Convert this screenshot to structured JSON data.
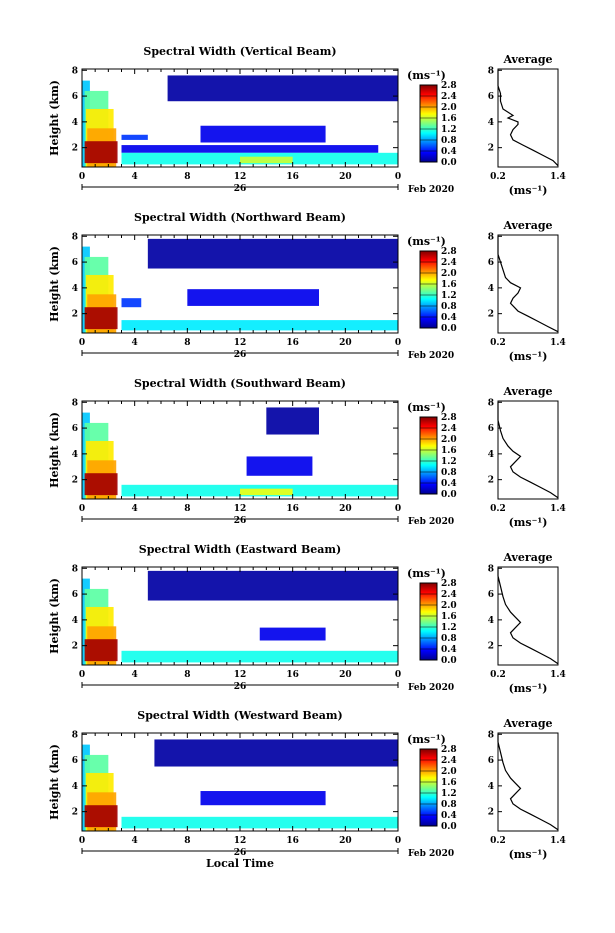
{
  "panels": [
    {
      "title": "Spectral Width (Vertical Beam)",
      "chart_data": {
        "type": "heatmap",
        "xlabel": "",
        "ylabel": "Height (km)",
        "xlim": [
          0,
          24
        ],
        "ylim": [
          0.5,
          8.1
        ],
        "x_ticks": [
          "0",
          "4",
          "8",
          "12",
          "16",
          "20",
          "0"
        ],
        "y_ticks": [
          "2",
          "4",
          "6",
          "8"
        ],
        "date_center": "26",
        "date_right": "Feb 2020",
        "colorbar": {
          "unit": "(ms⁻¹)",
          "range": [
            0,
            2.8
          ],
          "ticks": [
            "0.0",
            "0.4",
            "0.8",
            "1.2",
            "1.6",
            "2.0",
            "2.4",
            "2.8"
          ]
        },
        "regions": [
          {
            "x": [
              0,
              0.6
            ],
            "y": [
              0.5,
              7.2
            ],
            "value": 0.9
          },
          {
            "x": [
              0.2,
              2.0
            ],
            "y": [
              0.5,
              6.4
            ],
            "value": 1.3
          },
          {
            "x": [
              0.3,
              2.4
            ],
            "y": [
              0.5,
              5.0
            ],
            "value": 1.8
          },
          {
            "x": [
              0.4,
              2.6
            ],
            "y": [
              0.5,
              3.5
            ],
            "value": 2.0
          },
          {
            "x": [
              0.2,
              2.7
            ],
            "y": [
              0.8,
              2.5
            ],
            "value": 2.7
          },
          {
            "x": [
              3.0,
              5.0
            ],
            "y": [
              2.6,
              3.0
            ],
            "value": 0.5
          },
          {
            "x": [
              3.0,
              22.5
            ],
            "y": [
              1.6,
              2.2
            ],
            "value": 0.3
          },
          {
            "x": [
              9.0,
              18.5
            ],
            "y": [
              2.4,
              3.7
            ],
            "value": 0.3
          },
          {
            "x": [
              3.0,
              24.0
            ],
            "y": [
              0.7,
              1.6
            ],
            "value": 1.1
          },
          {
            "x": [
              12.0,
              16.0
            ],
            "y": [
              0.8,
              1.3
            ],
            "value": 1.6
          },
          {
            "x": [
              6.5,
              24.0
            ],
            "y": [
              5.6,
              7.6
            ],
            "value": 0.1
          }
        ]
      },
      "avg": {
        "title": "Average",
        "xlabel": "(ms⁻¹)",
        "x_ticks": [
          "0.2",
          "1.4"
        ],
        "y_ticks": [
          "2",
          "4",
          "6",
          "8"
        ],
        "xlim": [
          0.2,
          1.4
        ],
        "ylim": [
          0.5,
          8.1
        ],
        "points": [
          [
            1.4,
            0.6
          ],
          [
            1.3,
            1.0
          ],
          [
            1.1,
            1.4
          ],
          [
            0.9,
            1.8
          ],
          [
            0.7,
            2.2
          ],
          [
            0.5,
            2.6
          ],
          [
            0.45,
            3.0
          ],
          [
            0.5,
            3.4
          ],
          [
            0.6,
            3.8
          ],
          [
            0.6,
            4.0
          ],
          [
            0.4,
            4.3
          ],
          [
            0.5,
            4.5
          ],
          [
            0.3,
            5.0
          ],
          [
            0.25,
            5.6
          ],
          [
            0.25,
            6.2
          ],
          [
            0.2,
            6.8
          ],
          [
            0.2,
            7.4
          ],
          [
            0.2,
            8.0
          ]
        ]
      }
    },
    {
      "title": "Spectral Width (Northward Beam)",
      "chart_data": {
        "type": "heatmap",
        "xlabel": "",
        "ylabel": "Height (km)",
        "xlim": [
          0,
          24
        ],
        "ylim": [
          0.5,
          8.1
        ],
        "x_ticks": [
          "0",
          "4",
          "8",
          "12",
          "16",
          "20",
          "0"
        ],
        "y_ticks": [
          "2",
          "4",
          "6",
          "8"
        ],
        "date_center": "26",
        "date_right": "Feb 2020",
        "colorbar": {
          "unit": "(ms⁻¹)",
          "range": [
            0,
            2.8
          ],
          "ticks": [
            "0.0",
            "0.4",
            "0.8",
            "1.2",
            "1.6",
            "2.0",
            "2.4",
            "2.8"
          ]
        },
        "regions": [
          {
            "x": [
              0,
              0.6
            ],
            "y": [
              0.5,
              7.2
            ],
            "value": 0.9
          },
          {
            "x": [
              0.2,
              2.0
            ],
            "y": [
              0.5,
              6.4
            ],
            "value": 1.3
          },
          {
            "x": [
              0.3,
              2.4
            ],
            "y": [
              0.5,
              5.0
            ],
            "value": 1.8
          },
          {
            "x": [
              0.4,
              2.6
            ],
            "y": [
              0.5,
              3.5
            ],
            "value": 2.0
          },
          {
            "x": [
              0.2,
              2.7
            ],
            "y": [
              0.8,
              2.5
            ],
            "value": 2.7
          },
          {
            "x": [
              3.0,
              4.5
            ],
            "y": [
              2.5,
              3.2
            ],
            "value": 0.5
          },
          {
            "x": [
              8.0,
              18.0
            ],
            "y": [
              2.6,
              3.9
            ],
            "value": 0.3
          },
          {
            "x": [
              3.0,
              24.0
            ],
            "y": [
              0.7,
              1.5
            ],
            "value": 1.0
          },
          {
            "x": [
              5.0,
              24.0
            ],
            "y": [
              5.5,
              7.8
            ],
            "value": 0.1
          }
        ]
      },
      "avg": {
        "title": "Average",
        "xlabel": "(ms⁻¹)",
        "x_ticks": [
          "0.2",
          "1.4"
        ],
        "y_ticks": [
          "2",
          "4",
          "6",
          "8"
        ],
        "xlim": [
          0.2,
          1.4
        ],
        "ylim": [
          0.5,
          8.1
        ],
        "points": [
          [
            1.4,
            0.6
          ],
          [
            1.2,
            1.0
          ],
          [
            1.0,
            1.4
          ],
          [
            0.8,
            1.8
          ],
          [
            0.6,
            2.2
          ],
          [
            0.45,
            2.8
          ],
          [
            0.5,
            3.2
          ],
          [
            0.6,
            3.6
          ],
          [
            0.65,
            4.0
          ],
          [
            0.45,
            4.4
          ],
          [
            0.35,
            4.8
          ],
          [
            0.3,
            5.4
          ],
          [
            0.25,
            6.0
          ],
          [
            0.2,
            6.6
          ],
          [
            0.2,
            7.4
          ],
          [
            0.2,
            8.0
          ]
        ]
      }
    },
    {
      "title": "Spectral Width (Southward Beam)",
      "chart_data": {
        "type": "heatmap",
        "xlabel": "",
        "ylabel": "Height (km)",
        "xlim": [
          0,
          24
        ],
        "ylim": [
          0.5,
          8.1
        ],
        "x_ticks": [
          "0",
          "4",
          "8",
          "12",
          "16",
          "20",
          "0"
        ],
        "y_ticks": [
          "2",
          "4",
          "6",
          "8"
        ],
        "date_center": "26",
        "date_right": "Feb 2020",
        "colorbar": {
          "unit": "(ms⁻¹)",
          "range": [
            0,
            2.8
          ],
          "ticks": [
            "0.0",
            "0.4",
            "0.8",
            "1.2",
            "1.6",
            "2.0",
            "2.4",
            "2.8"
          ]
        },
        "regions": [
          {
            "x": [
              0,
              0.6
            ],
            "y": [
              0.5,
              7.2
            ],
            "value": 0.9
          },
          {
            "x": [
              0.2,
              2.0
            ],
            "y": [
              0.5,
              6.4
            ],
            "value": 1.3
          },
          {
            "x": [
              0.3,
              2.4
            ],
            "y": [
              0.5,
              5.0
            ],
            "value": 1.8
          },
          {
            "x": [
              0.4,
              2.6
            ],
            "y": [
              0.5,
              3.5
            ],
            "value": 2.0
          },
          {
            "x": [
              0.2,
              2.7
            ],
            "y": [
              0.8,
              2.5
            ],
            "value": 2.7
          },
          {
            "x": [
              12.5,
              17.5
            ],
            "y": [
              2.3,
              3.8
            ],
            "value": 0.3
          },
          {
            "x": [
              3.0,
              24.0
            ],
            "y": [
              0.7,
              1.6
            ],
            "value": 1.1
          },
          {
            "x": [
              12.0,
              16.0
            ],
            "y": [
              0.8,
              1.3
            ],
            "value": 1.7
          },
          {
            "x": [
              14.0,
              18.0
            ],
            "y": [
              5.5,
              7.6
            ],
            "value": 0.1
          }
        ]
      },
      "avg": {
        "title": "Average",
        "xlabel": "(ms⁻¹)",
        "x_ticks": [
          "0.2",
          "1.4"
        ],
        "y_ticks": [
          "2",
          "4",
          "6",
          "8"
        ],
        "xlim": [
          0.2,
          1.4
        ],
        "ylim": [
          0.5,
          8.1
        ],
        "points": [
          [
            1.4,
            0.6
          ],
          [
            1.25,
            1.0
          ],
          [
            1.05,
            1.4
          ],
          [
            0.85,
            1.8
          ],
          [
            0.65,
            2.2
          ],
          [
            0.5,
            2.6
          ],
          [
            0.45,
            3.0
          ],
          [
            0.55,
            3.4
          ],
          [
            0.65,
            3.8
          ],
          [
            0.5,
            4.2
          ],
          [
            0.4,
            4.6
          ],
          [
            0.3,
            5.2
          ],
          [
            0.25,
            5.8
          ],
          [
            0.2,
            6.6
          ],
          [
            0.2,
            7.4
          ],
          [
            0.2,
            8.0
          ]
        ]
      }
    },
    {
      "title": "Spectral Width (Eastward Beam)",
      "chart_data": {
        "type": "heatmap",
        "xlabel": "",
        "ylabel": "Height (km)",
        "xlim": [
          0,
          24
        ],
        "ylim": [
          0.5,
          8.1
        ],
        "x_ticks": [
          "0",
          "4",
          "8",
          "12",
          "16",
          "20",
          "0"
        ],
        "y_ticks": [
          "2",
          "4",
          "6",
          "8"
        ],
        "date_center": "26",
        "date_right": "Feb 2020",
        "colorbar": {
          "unit": "(ms⁻¹)",
          "range": [
            0,
            2.8
          ],
          "ticks": [
            "0.0",
            "0.4",
            "0.8",
            "1.2",
            "1.6",
            "2.0",
            "2.4",
            "2.8"
          ]
        },
        "regions": [
          {
            "x": [
              0,
              0.6
            ],
            "y": [
              0.5,
              7.2
            ],
            "value": 0.9
          },
          {
            "x": [
              0.2,
              2.0
            ],
            "y": [
              0.5,
              6.4
            ],
            "value": 1.3
          },
          {
            "x": [
              0.3,
              2.4
            ],
            "y": [
              0.5,
              5.0
            ],
            "value": 1.8
          },
          {
            "x": [
              0.4,
              2.6
            ],
            "y": [
              0.5,
              3.5
            ],
            "value": 2.0
          },
          {
            "x": [
              0.2,
              2.7
            ],
            "y": [
              0.8,
              2.5
            ],
            "value": 2.7
          },
          {
            "x": [
              13.5,
              18.5
            ],
            "y": [
              2.4,
              3.4
            ],
            "value": 0.3
          },
          {
            "x": [
              3.0,
              24.0
            ],
            "y": [
              0.7,
              1.6
            ],
            "value": 1.1
          },
          {
            "x": [
              5.0,
              24.0
            ],
            "y": [
              5.5,
              7.8
            ],
            "value": 0.1
          }
        ]
      },
      "avg": {
        "title": "Average",
        "xlabel": "(ms⁻¹)",
        "x_ticks": [
          "0.2",
          "1.4"
        ],
        "y_ticks": [
          "2",
          "4",
          "6",
          "8"
        ],
        "xlim": [
          0.2,
          1.4
        ],
        "ylim": [
          0.5,
          8.1
        ],
        "points": [
          [
            1.4,
            0.6
          ],
          [
            1.25,
            1.0
          ],
          [
            1.05,
            1.4
          ],
          [
            0.85,
            1.8
          ],
          [
            0.65,
            2.2
          ],
          [
            0.5,
            2.6
          ],
          [
            0.45,
            3.0
          ],
          [
            0.55,
            3.4
          ],
          [
            0.65,
            3.8
          ],
          [
            0.55,
            4.2
          ],
          [
            0.45,
            4.6
          ],
          [
            0.35,
            5.2
          ],
          [
            0.3,
            5.8
          ],
          [
            0.25,
            6.6
          ],
          [
            0.2,
            7.4
          ],
          [
            0.2,
            8.0
          ]
        ]
      }
    },
    {
      "title": "Spectral Width (Westward Beam)",
      "chart_data": {
        "type": "heatmap",
        "xlabel": "Local Time",
        "ylabel": "Height (km)",
        "xlim": [
          0,
          24
        ],
        "ylim": [
          0.5,
          8.1
        ],
        "x_ticks": [
          "0",
          "4",
          "8",
          "12",
          "16",
          "20",
          "0"
        ],
        "y_ticks": [
          "2",
          "4",
          "6",
          "8"
        ],
        "date_center": "26",
        "date_right": "Feb 2020",
        "colorbar": {
          "unit": "(ms⁻¹)",
          "range": [
            0,
            2.8
          ],
          "ticks": [
            "0.0",
            "0.4",
            "0.8",
            "1.2",
            "1.6",
            "2.0",
            "2.4",
            "2.8"
          ]
        },
        "regions": [
          {
            "x": [
              0,
              0.6
            ],
            "y": [
              0.5,
              7.2
            ],
            "value": 0.9
          },
          {
            "x": [
              0.2,
              2.0
            ],
            "y": [
              0.5,
              6.4
            ],
            "value": 1.3
          },
          {
            "x": [
              0.3,
              2.4
            ],
            "y": [
              0.5,
              5.0
            ],
            "value": 1.8
          },
          {
            "x": [
              0.4,
              2.6
            ],
            "y": [
              0.5,
              3.5
            ],
            "value": 2.0
          },
          {
            "x": [
              0.2,
              2.7
            ],
            "y": [
              0.8,
              2.5
            ],
            "value": 2.7
          },
          {
            "x": [
              9.0,
              18.5
            ],
            "y": [
              2.5,
              3.6
            ],
            "value": 0.3
          },
          {
            "x": [
              3.0,
              24.0
            ],
            "y": [
              0.7,
              1.6
            ],
            "value": 1.1
          },
          {
            "x": [
              5.5,
              24.0
            ],
            "y": [
              5.5,
              7.6
            ],
            "value": 0.1
          }
        ]
      },
      "avg": {
        "title": "Average",
        "xlabel": "(ms⁻¹)",
        "x_ticks": [
          "0.2",
          "1.4"
        ],
        "y_ticks": [
          "2",
          "4",
          "6",
          "8"
        ],
        "xlim": [
          0.2,
          1.4
        ],
        "ylim": [
          0.5,
          8.1
        ],
        "points": [
          [
            1.4,
            0.6
          ],
          [
            1.25,
            1.0
          ],
          [
            1.05,
            1.4
          ],
          [
            0.85,
            1.8
          ],
          [
            0.65,
            2.2
          ],
          [
            0.5,
            2.6
          ],
          [
            0.45,
            3.0
          ],
          [
            0.55,
            3.4
          ],
          [
            0.65,
            3.8
          ],
          [
            0.55,
            4.2
          ],
          [
            0.45,
            4.6
          ],
          [
            0.35,
            5.2
          ],
          [
            0.3,
            5.8
          ],
          [
            0.25,
            6.6
          ],
          [
            0.2,
            7.4
          ],
          [
            0.2,
            8.0
          ]
        ]
      }
    }
  ]
}
